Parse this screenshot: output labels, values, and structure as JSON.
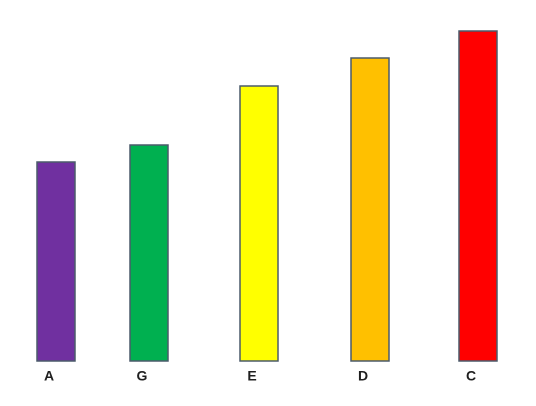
{
  "chart_data": {
    "type": "bar",
    "categories": [
      "A",
      "G",
      "E",
      "D",
      "C"
    ],
    "values": [
      199,
      216,
      275,
      303,
      330
    ],
    "colors": [
      "#7030a0",
      "#00b050",
      "#ffff00",
      "#ffc000",
      "#ff0000"
    ]
  }
}
